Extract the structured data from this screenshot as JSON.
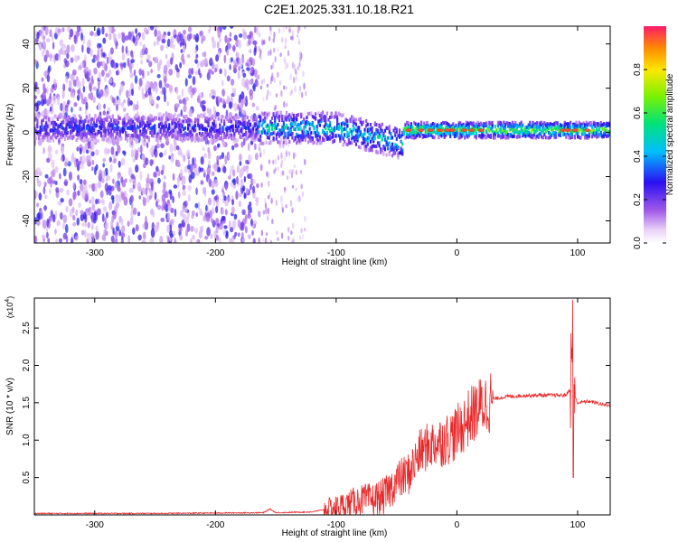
{
  "title": "C2E1.2025.331.10.18.R21",
  "chart_data": [
    {
      "type": "heatmap",
      "xlabel": "Height of straight line (km)",
      "ylabel": "Frequency (Hz)",
      "xlim": [
        -350,
        127
      ],
      "ylim": [
        -50,
        48
      ],
      "xticks": [
        -300,
        -200,
        -100,
        0,
        100
      ],
      "xtick_labels": [
        "-300",
        "-200",
        "-100",
        "0",
        "100"
      ],
      "yticks": [
        -40,
        -20,
        0,
        20,
        40
      ],
      "ytick_labels": [
        "-40",
        "-20",
        "0",
        "20",
        "40"
      ],
      "colorbar": {
        "label": "Normalized spectral amplitude",
        "range": [
          0,
          1
        ],
        "ticks": [
          0.0,
          0.2,
          0.4,
          0.6,
          0.8
        ],
        "tick_labels": [
          "0.0",
          "0.2",
          "0.4",
          "0.6",
          "0.8"
        ]
      },
      "description_regions": [
        {
          "x_range": [
            -350,
            -165
          ],
          "feature": "scattered low-amplitude speckle across all frequencies"
        },
        {
          "x_range": [
            -165,
            -125
          ],
          "feature": "sparse speckle fading out"
        },
        {
          "x_range": [
            -165,
            -45
          ],
          "feature": "band near 0 Hz, amplitude 0.3-0.6, drifting down to about -5 Hz"
        },
        {
          "x_range": [
            -45,
            127
          ],
          "feature": "narrow band near 0-2 Hz, amplitude 0.5-0.9"
        }
      ]
    },
    {
      "type": "line",
      "xlabel": "Height of straight line (km)",
      "ylabel": "SNR (10 * v/v)",
      "y_multiplier_label": "(x10",
      "y_multiplier_exp": "4",
      "y_multiplier_close": ")",
      "xlim": [
        -350,
        127
      ],
      "ylim": [
        0,
        2.9
      ],
      "xticks": [
        -300,
        -200,
        -100,
        0,
        100
      ],
      "xtick_labels": [
        "-300",
        "-200",
        "-100",
        "0",
        "100"
      ],
      "yticks": [
        0.5,
        1.0,
        1.5,
        2.0,
        2.5
      ],
      "ytick_labels": [
        "0.5",
        "1.0",
        "1.5",
        "2.0",
        "2.5"
      ],
      "color": "#e8292b",
      "series": [
        {
          "x": [
            -350,
            -250,
            -160,
            -155,
            -150,
            -120,
            -100,
            -90,
            -80,
            -70,
            -60,
            -50,
            -40,
            -30,
            -20,
            -10,
            0,
            10,
            20,
            30,
            40,
            60,
            80,
            90,
            95,
            97,
            100,
            110,
            120,
            127
          ],
          "y": [
            0.02,
            0.02,
            0.03,
            0.08,
            0.03,
            0.04,
            0.1,
            0.15,
            0.2,
            0.2,
            0.25,
            0.45,
            0.55,
            0.85,
            0.95,
            1.0,
            1.1,
            1.3,
            1.45,
            1.55,
            1.58,
            1.6,
            1.6,
            1.6,
            1.7,
            1.6,
            1.5,
            1.52,
            1.48,
            1.46
          ]
        }
      ]
    }
  ]
}
